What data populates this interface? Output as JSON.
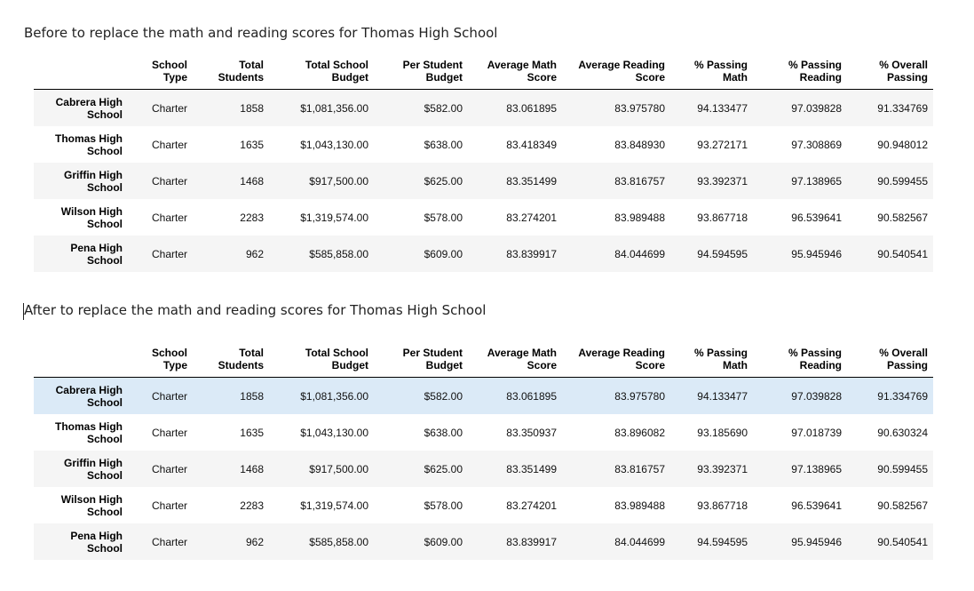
{
  "before": {
    "caption": "Before to replace the math and reading scores for Thomas High School",
    "columns": [
      {
        "line1": "School",
        "line2": "Type"
      },
      {
        "line1": "Total",
        "line2": "Students"
      },
      {
        "line1": "Total School",
        "line2": "Budget"
      },
      {
        "line1": "Per Student",
        "line2": "Budget"
      },
      {
        "line1": "Average Math",
        "line2": "Score"
      },
      {
        "line1": "Average Reading",
        "line2": "Score"
      },
      {
        "line1": "% Passing",
        "line2": "Math"
      },
      {
        "line1": "% Passing",
        "line2": "Reading"
      },
      {
        "line1": "% Overall",
        "line2": "Passing"
      }
    ],
    "rows": [
      {
        "school_line1": "Cabrera High",
        "school_line2": "School",
        "cells": [
          "Charter",
          "1858",
          "$1,081,356.00",
          "$582.00",
          "83.061895",
          "83.975780",
          "94.133477",
          "97.039828",
          "91.334769"
        ]
      },
      {
        "school_line1": "Thomas High",
        "school_line2": "School",
        "cells": [
          "Charter",
          "1635",
          "$1,043,130.00",
          "$638.00",
          "83.418349",
          "83.848930",
          "93.272171",
          "97.308869",
          "90.948012"
        ]
      },
      {
        "school_line1": "Griffin High",
        "school_line2": "School",
        "cells": [
          "Charter",
          "1468",
          "$917,500.00",
          "$625.00",
          "83.351499",
          "83.816757",
          "93.392371",
          "97.138965",
          "90.599455"
        ]
      },
      {
        "school_line1": "Wilson High",
        "school_line2": "School",
        "cells": [
          "Charter",
          "2283",
          "$1,319,574.00",
          "$578.00",
          "83.274201",
          "83.989488",
          "93.867718",
          "96.539641",
          "90.582567"
        ]
      },
      {
        "school_line1": "Pena High",
        "school_line2": "School",
        "cells": [
          "Charter",
          "962",
          "$585,858.00",
          "$609.00",
          "83.839917",
          "84.044699",
          "94.594595",
          "95.945946",
          "90.540541"
        ]
      }
    ]
  },
  "after": {
    "caption": "After to replace the math and reading scores for Thomas High School",
    "columns": [
      {
        "line1": "School",
        "line2": "Type"
      },
      {
        "line1": "Total",
        "line2": "Students"
      },
      {
        "line1": "Total School",
        "line2": "Budget"
      },
      {
        "line1": "Per Student",
        "line2": "Budget"
      },
      {
        "line1": "Average Math",
        "line2": "Score"
      },
      {
        "line1": "Average Reading",
        "line2": "Score"
      },
      {
        "line1": "% Passing",
        "line2": "Math"
      },
      {
        "line1": "% Passing",
        "line2": "Reading"
      },
      {
        "line1": "% Overall",
        "line2": "Passing"
      }
    ],
    "rows": [
      {
        "school_line1": "Cabrera High",
        "school_line2": "School",
        "cells": [
          "Charter",
          "1858",
          "$1,081,356.00",
          "$582.00",
          "83.061895",
          "83.975780",
          "94.133477",
          "97.039828",
          "91.334769"
        ]
      },
      {
        "school_line1": "Thomas High",
        "school_line2": "School",
        "cells": [
          "Charter",
          "1635",
          "$1,043,130.00",
          "$638.00",
          "83.350937",
          "83.896082",
          "93.185690",
          "97.018739",
          "90.630324"
        ]
      },
      {
        "school_line1": "Griffin High",
        "school_line2": "School",
        "cells": [
          "Charter",
          "1468",
          "$917,500.00",
          "$625.00",
          "83.351499",
          "83.816757",
          "93.392371",
          "97.138965",
          "90.599455"
        ]
      },
      {
        "school_line1": "Wilson High",
        "school_line2": "School",
        "cells": [
          "Charter",
          "2283",
          "$1,319,574.00",
          "$578.00",
          "83.274201",
          "83.989488",
          "93.867718",
          "96.539641",
          "90.582567"
        ]
      },
      {
        "school_line1": "Pena High",
        "school_line2": "School",
        "cells": [
          "Charter",
          "962",
          "$585,858.00",
          "$609.00",
          "83.839917",
          "84.044699",
          "94.594595",
          "95.945946",
          "90.540541"
        ]
      }
    ]
  },
  "colors": {
    "row_stripe": "#f5f5f5",
    "row_hover": "#dbeaf7"
  }
}
